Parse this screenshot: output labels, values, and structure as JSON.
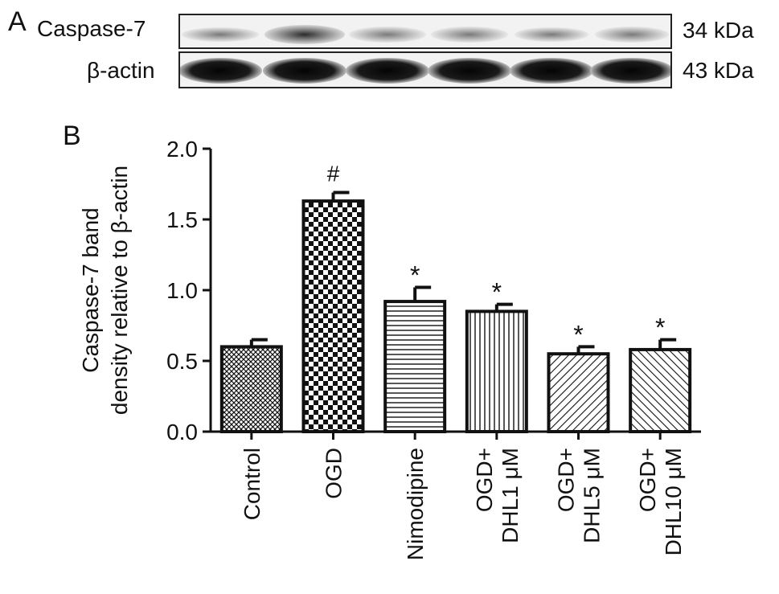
{
  "panel_a": {
    "letter": "A",
    "blots": [
      {
        "label": "Caspase-7",
        "size": "34 kDa"
      },
      {
        "label": "β-actin",
        "size": "43 kDa"
      }
    ]
  },
  "panel_b": {
    "letter": "B"
  },
  "chart_data": {
    "type": "bar",
    "categories": [
      "Control",
      "OGD",
      "Nimodipine",
      "OGD+\nDHL1 μM",
      "OGD+\nDHL5 μM",
      "OGD+\nDHL10 μM"
    ],
    "values": [
      0.6,
      1.63,
      0.92,
      0.85,
      0.55,
      0.58
    ],
    "errors": [
      0.05,
      0.06,
      0.1,
      0.05,
      0.05,
      0.07
    ],
    "annotations": [
      "",
      "#",
      "*",
      "*",
      "*",
      "*"
    ],
    "patterns": [
      "crosshatch",
      "checker",
      "horizontal",
      "vertical",
      "diag-fwd",
      "diag-back"
    ],
    "ylabel_lines": [
      "Caspase-7 band",
      "density relative to β-actin"
    ],
    "xlabel": "",
    "ylim": [
      0,
      2.0
    ],
    "yticks": [
      "0.0",
      "0.5",
      "1.0",
      "1.5",
      "2.0"
    ],
    "grid": false,
    "colors": {
      "bar_stroke": "#111111",
      "pattern": "#111111"
    }
  }
}
